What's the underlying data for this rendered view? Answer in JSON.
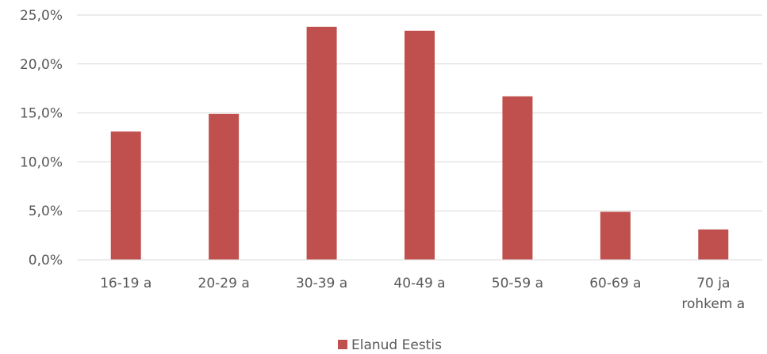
{
  "chart_data": {
    "type": "bar",
    "categories": [
      "16-19 a",
      "20-29 a",
      "30-39 a",
      "40-49 a",
      "50-59 a",
      "60-69 a",
      "70 ja rohkem a"
    ],
    "category_label_lines": [
      [
        "16-19 a"
      ],
      [
        "20-29 a"
      ],
      [
        "30-39 a"
      ],
      [
        "40-49 a"
      ],
      [
        "50-59 a"
      ],
      [
        "60-69 a"
      ],
      [
        "70 ja",
        "rohkem a"
      ]
    ],
    "series": [
      {
        "name": "Elanud Eestis",
        "color": "#c0504d",
        "values": [
          13.1,
          14.9,
          23.8,
          23.4,
          16.7,
          4.9,
          3.1
        ]
      }
    ],
    "ylim": [
      0,
      25
    ],
    "yticks": [
      0,
      5,
      10,
      15,
      20,
      25
    ],
    "ytick_labels": [
      "0,0%",
      "5,0%",
      "10,0%",
      "15,0%",
      "20,0%",
      "25,0%"
    ],
    "grid": true,
    "gridline_color": "#d9d9d9",
    "legend_position": "bottom-center",
    "title": "",
    "xlabel": "",
    "ylabel": ""
  }
}
